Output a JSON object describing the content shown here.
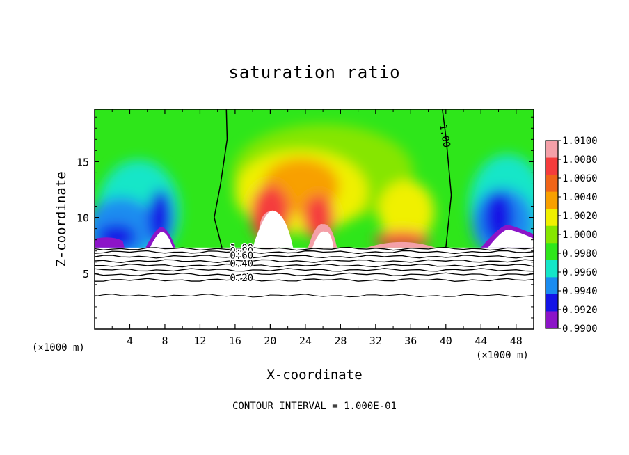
{
  "chart_data": {
    "type": "heatmap",
    "title": "saturation ratio",
    "xlabel": "X-coordinate",
    "ylabel": "Z-coordinate",
    "x_unit_label": "(×1000 m)",
    "x_ticks": [
      4,
      8,
      12,
      16,
      20,
      24,
      28,
      32,
      36,
      40,
      44,
      48
    ],
    "y_ticks": [
      5,
      10,
      15
    ],
    "xlim": [
      0,
      50
    ],
    "ylim": [
      0,
      19.7
    ],
    "colorbar": {
      "tick_labels": [
        "1.0100",
        "1.0080",
        "1.0060",
        "1.0040",
        "1.0020",
        "1.0000",
        "0.9980",
        "0.9960",
        "0.9940",
        "0.9920",
        "0.9900"
      ],
      "colors": [
        "#f4a0a8",
        "#f53c3c",
        "#f06418",
        "#f8a000",
        "#f0f000",
        "#86e600",
        "#2ee61a",
        "#14e6c8",
        "#1a8cf0",
        "#1414e6",
        "#8c14c8"
      ],
      "range": [
        0.99,
        1.01
      ]
    },
    "saturation_contour": {
      "label": "1.00",
      "left_x": [
        14.5,
        13.5,
        14.5,
        15.0,
        15.0
      ],
      "left_z": [
        7.3,
        10.0,
        13.0,
        17.0,
        19.7
      ],
      "right_x": [
        40.0,
        40.5,
        40.2,
        39.6
      ],
      "right_z": [
        7.3,
        12.0,
        17.0,
        19.7
      ]
    },
    "lower_contours": {
      "interval": 0.1,
      "labels": [
        "1.00",
        "0.80",
        "0.60",
        "0.40",
        "0.20"
      ],
      "levels_z": [
        7.2,
        6.9,
        6.5,
        6.1,
        5.7,
        5.3,
        4.9,
        4.4,
        3.0
      ]
    },
    "cloud_base_z": 7.3,
    "contour_interval_text": "CONTOUR INTERVAL = 1.000E-01"
  }
}
